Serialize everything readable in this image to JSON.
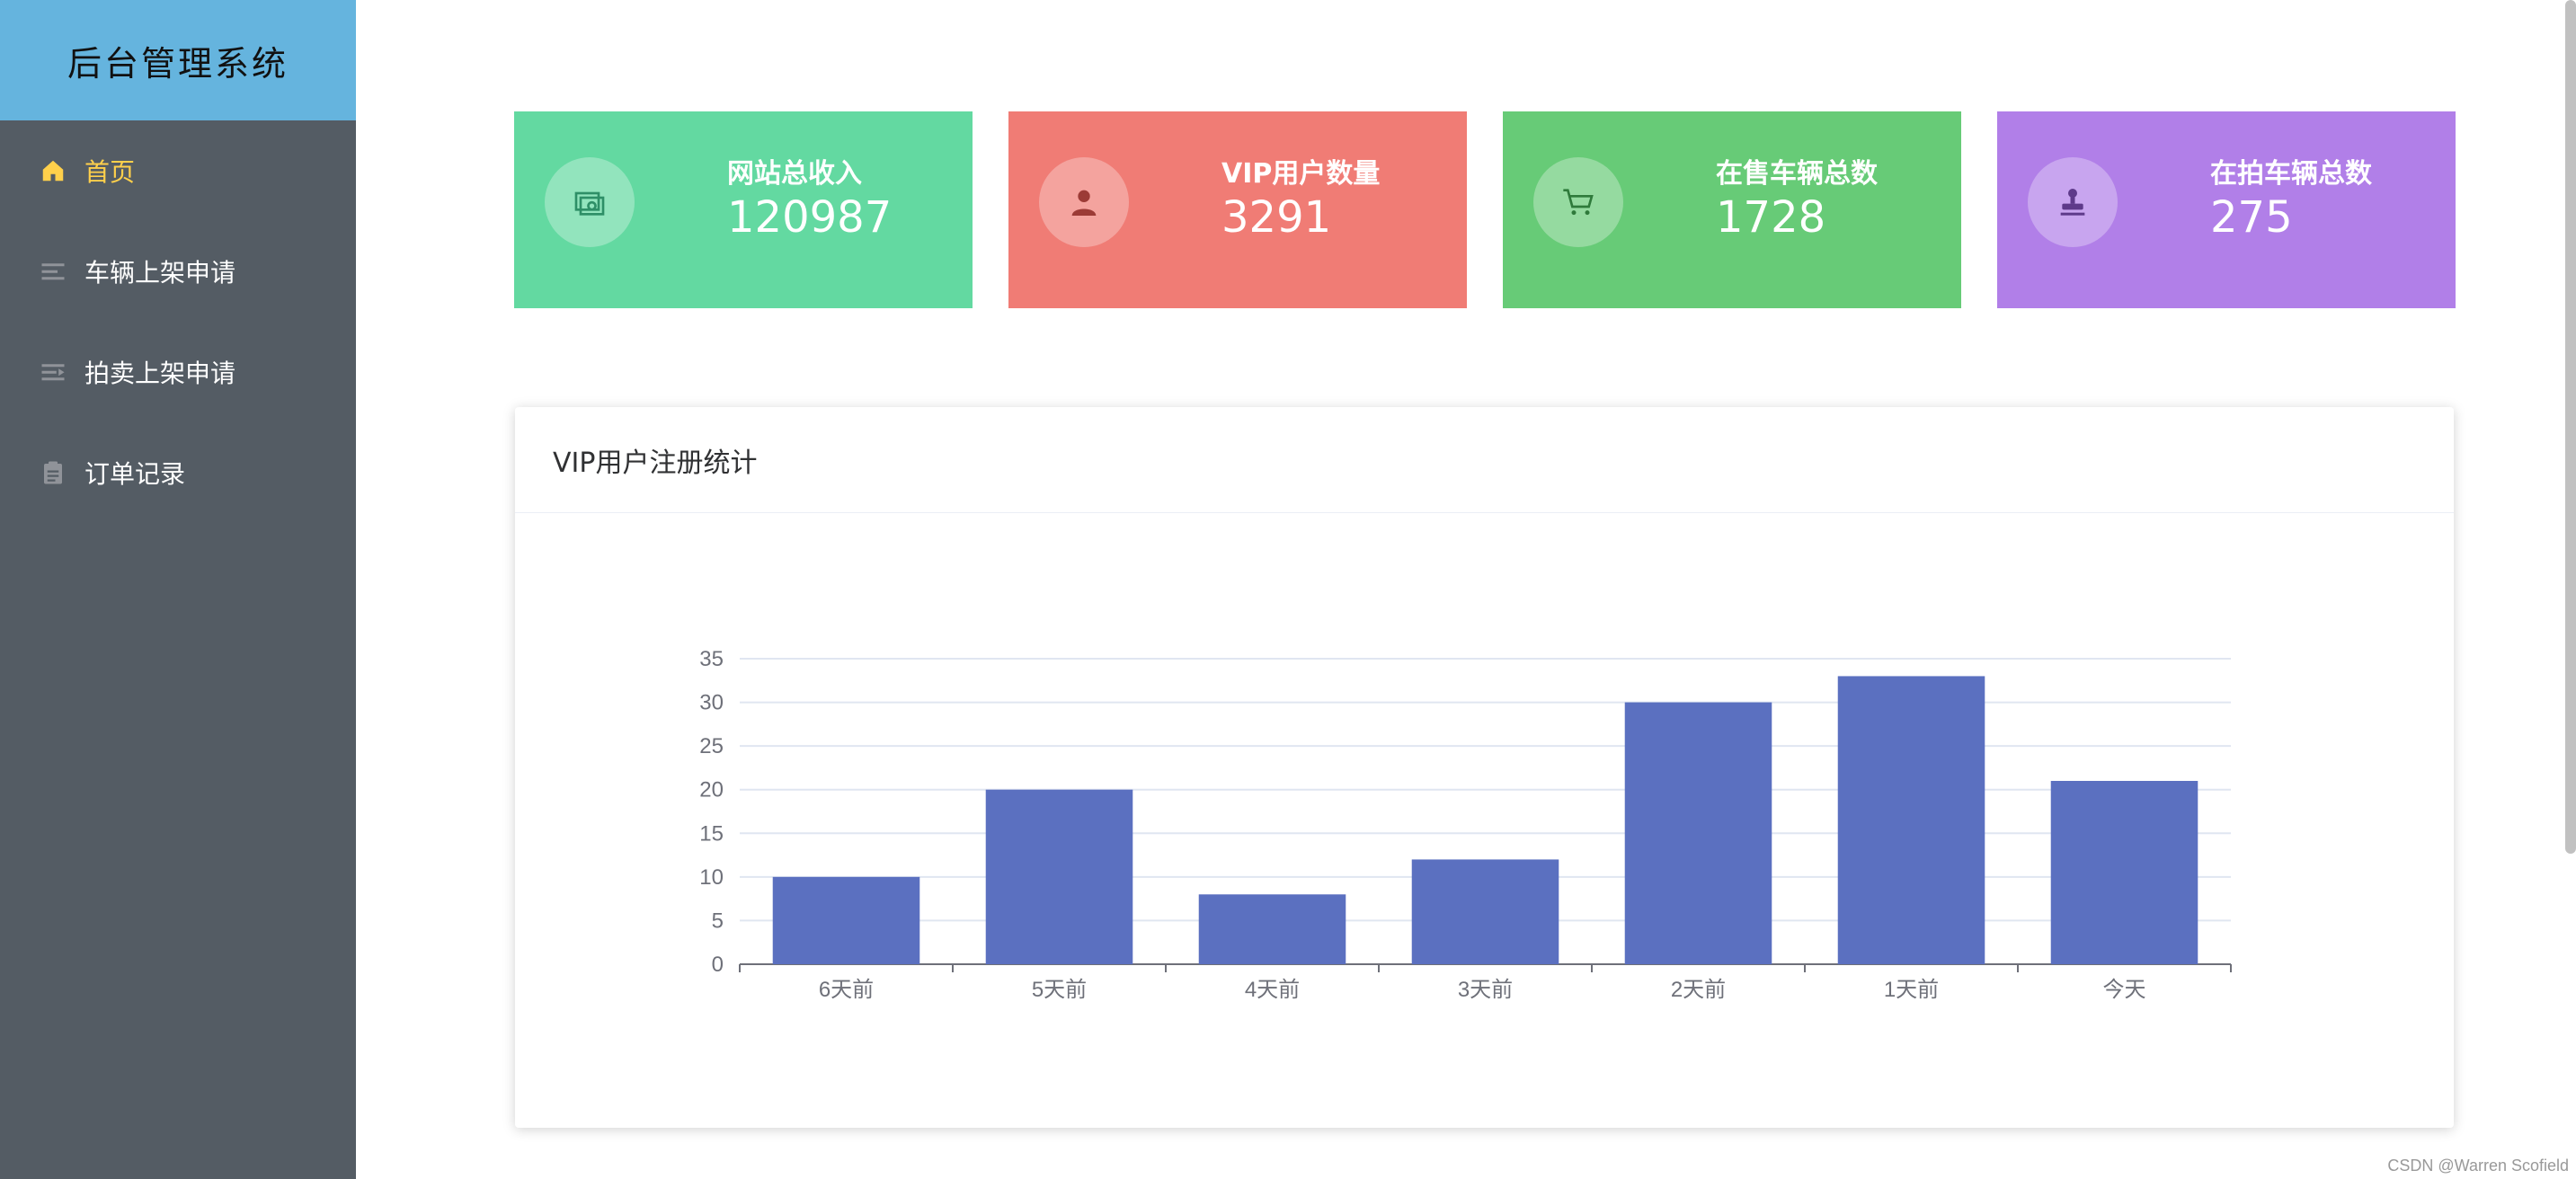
{
  "app": {
    "title": "后台管理系统"
  },
  "sidebar": {
    "items": [
      {
        "label": "首页",
        "icon": "home-icon",
        "active": true
      },
      {
        "label": "车辆上架申请",
        "icon": "list-icon",
        "active": false
      },
      {
        "label": "拍卖上架申请",
        "icon": "indent-list-icon",
        "active": false
      },
      {
        "label": "订单记录",
        "icon": "clipboard-icon",
        "active": false
      }
    ]
  },
  "stats": [
    {
      "label": "网站总收入",
      "value": "120987",
      "color": "#63d9a1",
      "icon": "money-icon"
    },
    {
      "label": "VIP用户数量",
      "value": "3291",
      "color": "#f07c75",
      "icon": "user-icon"
    },
    {
      "label": "在售车辆总数",
      "value": "1728",
      "color": "#67cb77",
      "icon": "cart-icon"
    },
    {
      "label": "在拍车辆总数",
      "value": "275",
      "color": "#b17fe8",
      "icon": "stamp-icon"
    }
  ],
  "panel": {
    "title": "VIP用户注册统计"
  },
  "chart_data": {
    "type": "bar",
    "categories": [
      "6天前",
      "5天前",
      "4天前",
      "3天前",
      "2天前",
      "1天前",
      "今天"
    ],
    "values": [
      10,
      20,
      8,
      12,
      30,
      33,
      21
    ],
    "ylim": [
      0,
      35
    ],
    "yticks": [
      0,
      5,
      10,
      15,
      20,
      25,
      30,
      35
    ],
    "bar_color": "#5b70c0",
    "grid": true
  },
  "watermark": "CSDN @Warren Scofield"
}
